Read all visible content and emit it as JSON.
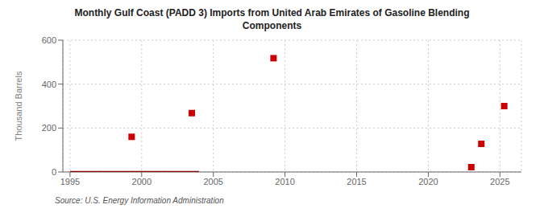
{
  "chart_data": {
    "type": "scatter",
    "title": "Monthly Gulf Coast (PADD 3) Imports from United Arab Emirates of Gasoline Blending\nComponents",
    "ylabel": "Thousand Barrels",
    "annotations": [
      "Source: U.S. Energy Information Administration"
    ],
    "xlim": [
      1994.5,
      2026.5
    ],
    "ylim": [
      0,
      600
    ],
    "xticks": [
      1995,
      2000,
      2005,
      2010,
      2015,
      2020,
      2025
    ],
    "yticks": [
      0,
      200,
      400,
      600
    ],
    "grid": true,
    "series": [
      {
        "type": "line",
        "color": "#8b0000",
        "x": [
          1995,
          2004
        ],
        "values": [
          0,
          0
        ]
      },
      {
        "type": "scatter",
        "color": "#cc0000",
        "marker": "square",
        "x": [
          1999.3,
          2003.5,
          2009.2,
          2023.0,
          2023.7,
          2025.3
        ],
        "values": [
          160,
          268,
          518,
          22,
          128,
          300
        ]
      }
    ]
  }
}
